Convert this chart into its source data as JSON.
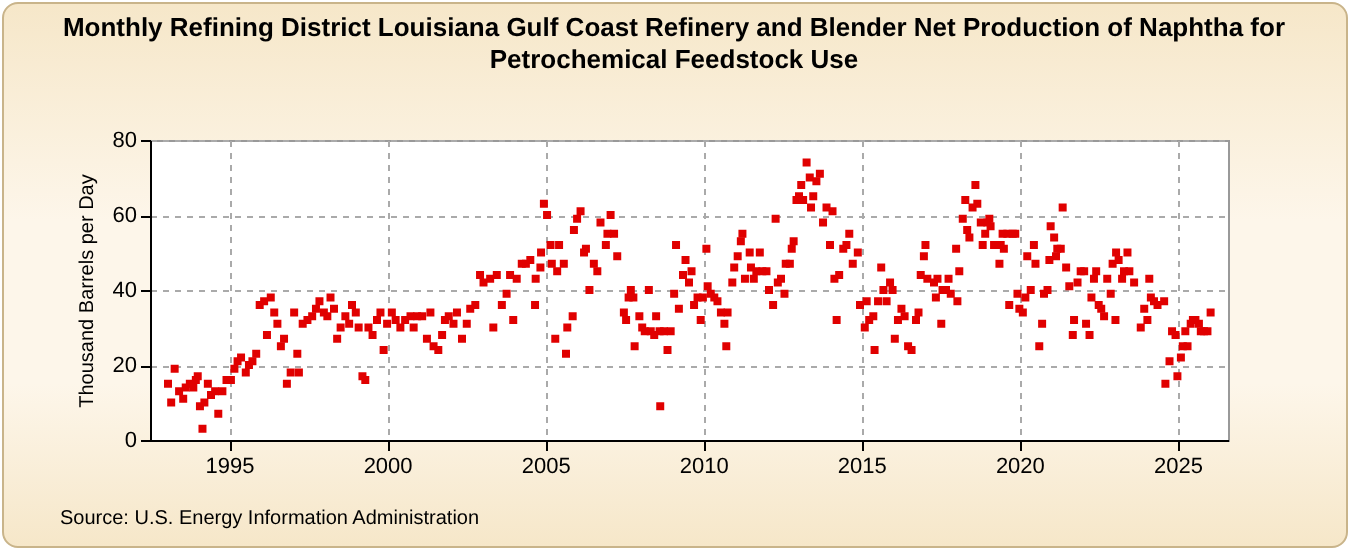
{
  "chart_data": {
    "type": "scatter",
    "title": "Monthly Refining District Louisiana Gulf Coast Refinery and Blender Net Production of Naphtha for Petrochemical Feedstock Use",
    "ylabel": "Thousand Barrels per Day",
    "annotations": [
      "Source: U.S. Energy Information Administration"
    ],
    "xlim": [
      1992.5,
      2026.6
    ],
    "xticks": [
      1995,
      2000,
      2005,
      2010,
      2015,
      2020,
      2025
    ],
    "ylim": [
      0,
      80
    ],
    "yticks": [
      0,
      20,
      40,
      60,
      80
    ],
    "grid": true,
    "marker": "square",
    "series": [
      {
        "color": "#e00000",
        "x": [
          1993.07,
          1993.17,
          1993.28,
          1993.42,
          1993.55,
          1993.63,
          1993.76,
          1993.87,
          1993.95,
          1994.01,
          1994.08,
          1994.16,
          1994.22,
          1994.33,
          1994.43,
          1994.56,
          1994.66,
          1994.79,
          1994.92,
          1995.06,
          1995.17,
          1995.27,
          1995.38,
          1995.53,
          1995.63,
          1995.74,
          1995.86,
          1995.97,
          1996.11,
          1996.2,
          1996.32,
          1996.43,
          1996.53,
          1996.64,
          1996.74,
          1996.83,
          1996.95,
          1997.06,
          1997.16,
          1997.21,
          1997.33,
          1997.48,
          1997.63,
          1997.75,
          1997.86,
          1998.0,
          1998.11,
          1998.21,
          1998.32,
          1998.42,
          1998.53,
          1998.68,
          1998.8,
          1998.89,
          1999.01,
          1999.1,
          1999.22,
          1999.31,
          1999.41,
          1999.54,
          1999.68,
          1999.79,
          1999.89,
          2000.0,
          2000.15,
          2000.27,
          2000.42,
          2000.57,
          2000.74,
          2000.84,
          2000.95,
          2001.11,
          2001.26,
          2001.37,
          2001.47,
          2001.62,
          2001.74,
          2001.83,
          2001.95,
          2002.1,
          2002.21,
          2002.37,
          2002.52,
          2002.63,
          2002.79,
          2002.94,
          2003.05,
          2003.26,
          2003.36,
          2003.47,
          2003.63,
          2003.78,
          2003.89,
          2003.99,
          2004.1,
          2004.26,
          2004.39,
          2004.53,
          2004.68,
          2004.7,
          2004.85,
          2004.87,
          2004.96,
          2005.06,
          2005.17,
          2005.21,
          2005.32,
          2005.38,
          2005.44,
          2005.59,
          2005.66,
          2005.7,
          2005.87,
          2005.91,
          2006.01,
          2006.12,
          2006.23,
          2006.29,
          2006.4,
          2006.54,
          2006.65,
          2006.75,
          2006.92,
          2006.97,
          2007.07,
          2007.18,
          2007.28,
          2007.49,
          2007.56,
          2007.64,
          2007.71,
          2007.79,
          2007.83,
          2007.98,
          2008.07,
          2008.15,
          2008.28,
          2008.34,
          2008.45,
          2008.51,
          2008.62,
          2008.64,
          2008.76,
          2008.87,
          2008.97,
          2009.08,
          2009.14,
          2009.23,
          2009.36,
          2009.44,
          2009.55,
          2009.63,
          2009.71,
          2009.82,
          2009.92,
          2009.99,
          2010.1,
          2010.14,
          2010.24,
          2010.35,
          2010.45,
          2010.56,
          2010.67,
          2010.73,
          2010.77,
          2010.92,
          2010.98,
          2011.09,
          2011.19,
          2011.24,
          2011.32,
          2011.47,
          2011.51,
          2011.6,
          2011.68,
          2011.79,
          2011.87,
          2012.0,
          2012.08,
          2012.21,
          2012.29,
          2012.36,
          2012.46,
          2012.57,
          2012.61,
          2012.74,
          2012.8,
          2012.86,
          2012.95,
          2013.03,
          2013.1,
          2013.16,
          2013.27,
          2013.37,
          2013.41,
          2013.48,
          2013.58,
          2013.69,
          2013.79,
          2013.9,
          2014.01,
          2014.09,
          2014.15,
          2014.22,
          2014.3,
          2014.43,
          2014.53,
          2014.62,
          2014.73,
          2014.89,
          2014.96,
          2015.11,
          2015.17,
          2015.25,
          2015.38,
          2015.42,
          2015.53,
          2015.63,
          2015.7,
          2015.8,
          2015.91,
          2015.99,
          2016.06,
          2016.16,
          2016.27,
          2016.37,
          2016.48,
          2016.59,
          2016.73,
          2016.81,
          2016.88,
          2016.98,
          2017.03,
          2017.09,
          2017.3,
          2017.36,
          2017.41,
          2017.53,
          2017.57,
          2017.68,
          2017.76,
          2017.83,
          2018.0,
          2018.04,
          2018.1,
          2018.21,
          2018.29,
          2018.35,
          2018.42,
          2018.52,
          2018.61,
          2018.67,
          2018.78,
          2018.84,
          2018.92,
          2018.99,
          2019.05,
          2019.09,
          2019.2,
          2019.37,
          2019.41,
          2019.47,
          2019.51,
          2019.62,
          2019.68,
          2019.79,
          2019.87,
          2019.94,
          2020.0,
          2020.11,
          2020.19,
          2020.25,
          2020.36,
          2020.46,
          2020.51,
          2020.63,
          2020.72,
          2020.78,
          2020.89,
          2020.95,
          2020.99,
          2021.1,
          2021.16,
          2021.2,
          2021.31,
          2021.37,
          2021.48,
          2021.58,
          2021.69,
          2021.73,
          2021.84,
          2021.94,
          2022.05,
          2022.11,
          2022.22,
          2022.28,
          2022.36,
          2022.43,
          2022.51,
          2022.59,
          2022.68,
          2022.78,
          2022.89,
          2022.95,
          2023.04,
          2023.06,
          2023.14,
          2023.25,
          2023.31,
          2023.42,
          2023.48,
          2023.63,
          2023.84,
          2023.95,
          2024.05,
          2024.11,
          2024.16,
          2024.26,
          2024.37,
          2024.58,
          2024.62,
          2024.75,
          2024.83,
          2024.94,
          2025.0,
          2025.11,
          2025.17,
          2025.25,
          2025.32,
          2025.42,
          2025.49,
          2025.57,
          2025.68,
          2025.74,
          2025.84,
          2025.95,
          2026.05
        ],
        "values": [
          15,
          10,
          19,
          13,
          11,
          14,
          15,
          14,
          16,
          17,
          9,
          3,
          10,
          15,
          12,
          13,
          7,
          13,
          16,
          16,
          19,
          21,
          22,
          18,
          20,
          21,
          23,
          36,
          37,
          28,
          38,
          34,
          31,
          25,
          27,
          15,
          18,
          34,
          23,
          18,
          31,
          32,
          33,
          35,
          37,
          34,
          33,
          38,
          35,
          27,
          30,
          33,
          31,
          36,
          34,
          30,
          17,
          16,
          30,
          28,
          32,
          34,
          24,
          31,
          34,
          32,
          30,
          32,
          33,
          30,
          33,
          33,
          27,
          34,
          25,
          24,
          28,
          32,
          33,
          31,
          34,
          27,
          31,
          35,
          36,
          44,
          42,
          43,
          30,
          44,
          36,
          39,
          44,
          32,
          43,
          47,
          47,
          48,
          36,
          43,
          46,
          50,
          63,
          60,
          52,
          47,
          27,
          45,
          52,
          47,
          23,
          30,
          33,
          56,
          59,
          61,
          50,
          51,
          40,
          47,
          45,
          58,
          52,
          55,
          60,
          55,
          49,
          34,
          32,
          38,
          40,
          38,
          25,
          33,
          30,
          29,
          40,
          29,
          28,
          33,
          29,
          9,
          29,
          24,
          29,
          39,
          52,
          35,
          44,
          48,
          42,
          45,
          36,
          38,
          32,
          38,
          51,
          41,
          39,
          38,
          37,
          34,
          31,
          25,
          34,
          42,
          46,
          49,
          53,
          55,
          43,
          50,
          46,
          43,
          45,
          50,
          45,
          45,
          40,
          36,
          59,
          42,
          43,
          39,
          47,
          47,
          51,
          53,
          64,
          65,
          68,
          64,
          74,
          70,
          62,
          65,
          69,
          71,
          58,
          62,
          52,
          61,
          43,
          32,
          44,
          51,
          52,
          55,
          47,
          50,
          36,
          30,
          37,
          32,
          33,
          24,
          37,
          46,
          40,
          37,
          42,
          40,
          27,
          32,
          35,
          33,
          25,
          24,
          32,
          34,
          44,
          49,
          52,
          43,
          42,
          38,
          43,
          31,
          40,
          40,
          43,
          39,
          51,
          37,
          45,
          59,
          64,
          56,
          54,
          62,
          68,
          63,
          58,
          52,
          55,
          58,
          59,
          57,
          52,
          47,
          52,
          55,
          51,
          55,
          36,
          55,
          55,
          39,
          35,
          34,
          38,
          49,
          40,
          52,
          47,
          25,
          31,
          39,
          40,
          48,
          57,
          54,
          49,
          51,
          51,
          62,
          46,
          41,
          28,
          32,
          42,
          45,
          45,
          31,
          28,
          38,
          43,
          45,
          36,
          35,
          33,
          43,
          39,
          47,
          32,
          50,
          48,
          43,
          45,
          50,
          45,
          42,
          30,
          35,
          32,
          43,
          38,
          37,
          36,
          37,
          15,
          21,
          29,
          28,
          17,
          22,
          25,
          29,
          25,
          31,
          32,
          32,
          31,
          29,
          29,
          29,
          34
        ]
      }
    ]
  }
}
